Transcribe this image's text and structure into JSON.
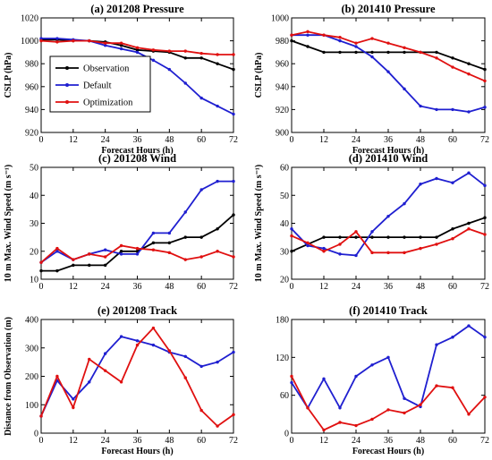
{
  "legend": {
    "entries": [
      {
        "label": "Observation",
        "color": "#000000"
      },
      {
        "label": "Default",
        "color": "#1f1fd0"
      },
      {
        "label": "Optimization",
        "color": "#e01010"
      }
    ]
  },
  "chart_data": [
    {
      "type": "line",
      "title": "(a) 201208 Pressure",
      "xlabel": "Forecast Hours (h)",
      "ylabel": "CSLP (hPa)",
      "xlim": [
        0,
        72
      ],
      "ylim": [
        920,
        1020
      ],
      "xticks": [
        0,
        12,
        24,
        36,
        48,
        60,
        72
      ],
      "yticks": [
        920,
        940,
        960,
        980,
        1000,
        1020
      ],
      "legend": "top-left",
      "series": [
        {
          "name": "Observation",
          "color": "#000000",
          "x": [
            0,
            6,
            12,
            18,
            24,
            30,
            36,
            42,
            48,
            54,
            60,
            66,
            72
          ],
          "y": [
            1001,
            1001,
            1000,
            1000,
            999,
            996,
            992,
            991,
            990,
            985,
            985,
            980,
            975
          ]
        },
        {
          "name": "Default",
          "color": "#1f1fd0",
          "x": [
            0,
            6,
            12,
            18,
            24,
            30,
            36,
            42,
            48,
            54,
            60,
            66,
            72
          ],
          "y": [
            1002,
            1002,
            1001,
            1000,
            996,
            993,
            990,
            983,
            975,
            963,
            950,
            943,
            936
          ]
        },
        {
          "name": "Optimization",
          "color": "#e01010",
          "x": [
            0,
            6,
            12,
            18,
            24,
            30,
            36,
            42,
            48,
            54,
            60,
            66,
            72
          ],
          "y": [
            1000,
            999,
            1000,
            1000,
            998,
            998,
            994,
            992,
            991,
            991,
            989,
            988,
            988
          ]
        }
      ]
    },
    {
      "type": "line",
      "title": "(b) 201410 Pressure",
      "xlabel": "Forecast Hours (h)",
      "ylabel": "CSLP (hPa)",
      "xlim": [
        0,
        72
      ],
      "ylim": [
        900,
        1000
      ],
      "xticks": [
        0,
        12,
        24,
        36,
        48,
        60,
        72
      ],
      "yticks": [
        900,
        920,
        940,
        960,
        980,
        1000
      ],
      "series": [
        {
          "name": "Observation",
          "color": "#000000",
          "x": [
            0,
            6,
            12,
            18,
            24,
            30,
            36,
            42,
            48,
            54,
            60,
            66,
            72
          ],
          "y": [
            980,
            975,
            970,
            970,
            970,
            970,
            970,
            970,
            970,
            970,
            965,
            960,
            955
          ]
        },
        {
          "name": "Default",
          "color": "#1f1fd0",
          "x": [
            0,
            6,
            12,
            18,
            24,
            30,
            36,
            42,
            48,
            54,
            60,
            66,
            72
          ],
          "y": [
            985,
            985,
            985,
            980,
            975,
            966,
            953,
            938,
            923,
            920,
            920,
            918,
            922
          ]
        },
        {
          "name": "Optimization",
          "color": "#e01010",
          "x": [
            0,
            6,
            12,
            18,
            24,
            30,
            36,
            42,
            48,
            54,
            60,
            66,
            72
          ],
          "y": [
            985,
            988,
            985,
            983,
            978,
            982,
            978,
            974,
            970,
            965,
            957,
            951,
            945
          ]
        }
      ]
    },
    {
      "type": "line",
      "title": "(c) 201208 Wind",
      "xlabel": "",
      "ylabel": "10 m Max. Wind Speed (m s⁻¹)",
      "xlim": [
        0,
        72
      ],
      "ylim": [
        10,
        50
      ],
      "xticks": [
        0,
        12,
        24,
        36,
        48,
        60,
        72
      ],
      "yticks": [
        10,
        20,
        30,
        40,
        50
      ],
      "series": [
        {
          "name": "Observation",
          "color": "#000000",
          "x": [
            0,
            6,
            12,
            18,
            24,
            30,
            36,
            42,
            48,
            54,
            60,
            66,
            72
          ],
          "y": [
            13,
            13,
            15,
            15,
            15,
            20,
            20,
            23,
            23,
            25,
            25,
            28,
            33
          ]
        },
        {
          "name": "Default",
          "color": "#1f1fd0",
          "x": [
            0,
            6,
            12,
            18,
            24,
            30,
            36,
            42,
            48,
            54,
            60,
            66,
            72
          ],
          "y": [
            16,
            20,
            17,
            19,
            20.5,
            19,
            19,
            26.5,
            26.5,
            34,
            42,
            45,
            45
          ]
        },
        {
          "name": "Optimization",
          "color": "#e01010",
          "x": [
            0,
            6,
            12,
            18,
            24,
            30,
            36,
            42,
            48,
            54,
            60,
            66,
            72
          ],
          "y": [
            16,
            21,
            17,
            19,
            18,
            22,
            21,
            20.5,
            19.5,
            17,
            18,
            20,
            18
          ]
        }
      ]
    },
    {
      "type": "line",
      "title": "(d) 201410 Wind",
      "xlabel": "",
      "ylabel": "10 m Max. Wind Speed (m s⁻¹)",
      "xlim": [
        0,
        72
      ],
      "ylim": [
        20,
        60
      ],
      "xticks": [
        0,
        12,
        24,
        36,
        48,
        60,
        72
      ],
      "yticks": [
        20,
        30,
        40,
        50,
        60
      ],
      "series": [
        {
          "name": "Observation",
          "color": "#000000",
          "x": [
            0,
            6,
            12,
            18,
            24,
            30,
            36,
            42,
            48,
            54,
            60,
            66,
            72
          ],
          "y": [
            30,
            32.5,
            35,
            35,
            35,
            35,
            35,
            35,
            35,
            35,
            38,
            40,
            42
          ]
        },
        {
          "name": "Default",
          "color": "#1f1fd0",
          "x": [
            0,
            6,
            12,
            18,
            24,
            30,
            36,
            42,
            48,
            54,
            60,
            66,
            72
          ],
          "y": [
            38,
            32,
            31,
            29,
            28.5,
            37,
            42.5,
            47,
            54,
            56,
            54.5,
            58,
            53.5
          ]
        },
        {
          "name": "Optimization",
          "color": "#e01010",
          "x": [
            0,
            6,
            12,
            18,
            24,
            30,
            36,
            42,
            48,
            54,
            60,
            66,
            72
          ],
          "y": [
            35.5,
            33,
            30,
            32.5,
            37,
            29.5,
            29.5,
            29.5,
            31,
            32.5,
            34.5,
            38,
            36
          ]
        }
      ]
    },
    {
      "type": "line",
      "title": "(e) 201208 Track",
      "xlabel": "Forecast Hours (h)",
      "ylabel": "Distance from Observation (m)",
      "xlim": [
        0,
        72
      ],
      "ylim": [
        0,
        400
      ],
      "xticks": [
        0,
        12,
        24,
        36,
        48,
        60,
        72
      ],
      "yticks": [
        0,
        100,
        200,
        300,
        400
      ],
      "series": [
        {
          "name": "Default",
          "color": "#1f1fd0",
          "x": [
            0,
            6,
            12,
            18,
            24,
            30,
            36,
            42,
            48,
            54,
            60,
            66,
            72
          ],
          "y": [
            60,
            185,
            120,
            180,
            280,
            340,
            325,
            310,
            285,
            270,
            235,
            250,
            285
          ]
        },
        {
          "name": "Optimization",
          "color": "#e01010",
          "x": [
            0,
            6,
            12,
            18,
            24,
            30,
            36,
            42,
            48,
            54,
            60,
            66,
            72
          ],
          "y": [
            60,
            200,
            90,
            260,
            220,
            180,
            310,
            370,
            290,
            195,
            80,
            25,
            65
          ]
        }
      ]
    },
    {
      "type": "line",
      "title": "(f) 201410 Track",
      "xlabel": "Forecast Hours (h)",
      "ylabel": "",
      "xlim": [
        0,
        72
      ],
      "ylim": [
        0,
        180
      ],
      "xticks": [
        0,
        12,
        24,
        36,
        48,
        60,
        72
      ],
      "yticks": [
        0,
        60,
        120,
        180
      ],
      "series": [
        {
          "name": "Default",
          "color": "#1f1fd0",
          "x": [
            0,
            6,
            12,
            18,
            24,
            30,
            36,
            42,
            48,
            54,
            60,
            66,
            72
          ],
          "y": [
            80,
            40,
            86,
            40,
            90,
            108,
            120,
            55,
            42,
            140,
            152,
            170,
            152
          ]
        },
        {
          "name": "Optimization",
          "color": "#e01010",
          "x": [
            0,
            6,
            12,
            18,
            24,
            30,
            36,
            42,
            48,
            54,
            60,
            66,
            72
          ],
          "y": [
            90,
            40,
            5,
            17,
            12,
            22,
            37,
            32,
            45,
            75,
            72,
            30,
            57
          ]
        }
      ]
    }
  ]
}
